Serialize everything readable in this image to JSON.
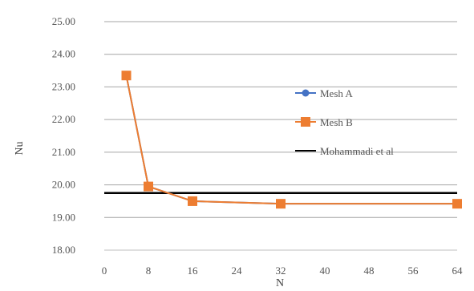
{
  "chart_data": {
    "type": "line",
    "xlabel": "N",
    "ylabel": "Nu",
    "xlim": [
      0,
      64
    ],
    "ylim": [
      18,
      25
    ],
    "x_ticks": [
      "0",
      "8",
      "16",
      "24",
      "32",
      "40",
      "48",
      "56",
      "64"
    ],
    "y_ticks": [
      "18.00",
      "19.00",
      "20.00",
      "21.00",
      "22.00",
      "23.00",
      "24.00",
      "25.00"
    ],
    "grid": true,
    "legend_position": "right",
    "series": [
      {
        "name": "Mesh A",
        "color": "#4472C4",
        "marker": "circle",
        "points": [
          {
            "x": 4,
            "y": 23.35
          },
          {
            "x": 8,
            "y": 19.95
          },
          {
            "x": 16,
            "y": 19.5
          },
          {
            "x": 32,
            "y": 19.42
          },
          {
            "x": 64,
            "y": 19.42
          }
        ]
      },
      {
        "name": "Mesh B",
        "color": "#ED7D31",
        "marker": "square",
        "points": [
          {
            "x": 4,
            "y": 23.35
          },
          {
            "x": 8,
            "y": 19.95
          },
          {
            "x": 16,
            "y": 19.5
          },
          {
            "x": 32,
            "y": 19.42
          },
          {
            "x": 64,
            "y": 19.42
          }
        ]
      },
      {
        "name": "Mohammadi et al",
        "color": "#000000",
        "marker": "none",
        "points": [
          {
            "x": 0,
            "y": 19.75
          },
          {
            "x": 64,
            "y": 19.75
          }
        ]
      }
    ]
  }
}
